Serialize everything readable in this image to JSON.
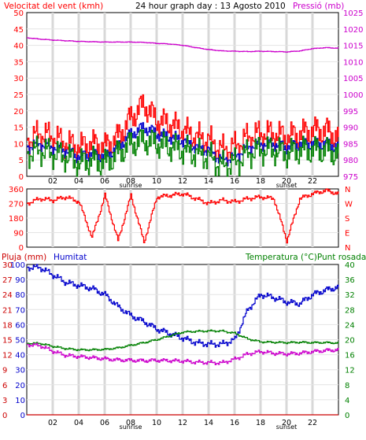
{
  "header": {
    "wind_title": "Velocitat del vent (kmh)",
    "graph_title": "24 hour graph day : 13 Agosto 2010",
    "pressure_title": "Pressió (mb)",
    "rain_title": "Pluja (mm)",
    "humidity_title": "Humitat",
    "temp_title": "Temperatura (°C)Punt rosada"
  },
  "colors": {
    "wind_gust": "#ff0000",
    "wind_avg": "#0000cc",
    "wind_green": "#008000",
    "pressure": "#cc00cc",
    "direction": "#ff0000",
    "humidity": "#0000cc",
    "temperature": "#008000",
    "dewpoint": "#cc00cc",
    "rain": "#cc0000"
  },
  "x_axis": {
    "hour_labels": [
      "02",
      "04",
      "06",
      "08",
      "10",
      "12",
      "14",
      "16",
      "18",
      "20",
      "22"
    ],
    "sunrise_label": "sunrise",
    "sunset_label": "sunset"
  },
  "chart_data": [
    {
      "type": "line",
      "name": "wind_pressure",
      "y_left": {
        "ticks": [
          0,
          5,
          10,
          15,
          20,
          25,
          30,
          35,
          40,
          45,
          50
        ],
        "ylim": [
          0,
          50
        ]
      },
      "y_right": {
        "ticks": [
          975,
          980,
          985,
          990,
          995,
          1000,
          1005,
          1010,
          1015,
          1020,
          1025
        ],
        "ylim": [
          975,
          1025
        ]
      },
      "x": [
        0,
        1,
        2,
        3,
        4,
        5,
        6,
        7,
        8,
        9,
        10,
        11,
        12,
        13,
        14,
        15,
        16,
        17,
        18,
        19,
        20,
        21,
        22,
        23,
        24
      ],
      "series": [
        {
          "key": "gust",
          "values": [
            11,
            13,
            12,
            10,
            9,
            10,
            9,
            12,
            18,
            22,
            17,
            16,
            14,
            12,
            11,
            8,
            9,
            12,
            13,
            13,
            12,
            13,
            14,
            14,
            12
          ],
          "axis": "left"
        },
        {
          "key": "avg",
          "values": [
            9,
            10,
            9,
            8,
            6,
            7,
            6,
            9,
            13,
            15,
            13,
            12,
            11,
            9,
            8,
            5,
            6,
            9,
            10,
            10,
            9,
            10,
            10,
            10,
            9
          ],
          "axis": "left"
        },
        {
          "key": "green",
          "values": [
            7,
            8,
            7,
            6,
            4,
            5,
            4,
            7,
            10,
            11,
            10,
            9,
            8,
            7,
            6,
            3,
            4,
            7,
            8,
            8,
            7,
            8,
            8,
            8,
            7
          ],
          "axis": "left"
        },
        {
          "key": "pressure",
          "values": [
            1017.3,
            1016.9,
            1016.6,
            1016.4,
            1016.2,
            1016.1,
            1016.0,
            1016.0,
            1016.0,
            1015.9,
            1015.6,
            1015.4,
            1015.0,
            1014.3,
            1013.7,
            1013.3,
            1013.2,
            1013.1,
            1013.2,
            1013.1,
            1013.0,
            1013.3,
            1014.0,
            1014.3,
            1014.1
          ],
          "axis": "right"
        }
      ]
    },
    {
      "type": "line",
      "name": "wind_direction",
      "y_left": {
        "ticks": [
          0,
          90,
          180,
          270,
          360
        ],
        "ylim": [
          0,
          360
        ]
      },
      "y_right_labels": [
        "N",
        "W",
        "S",
        "E",
        "N"
      ],
      "x": [
        0,
        1,
        2,
        3,
        4,
        5,
        6,
        7,
        8,
        9,
        10,
        11,
        12,
        13,
        14,
        15,
        16,
        17,
        18,
        19,
        20,
        21,
        22,
        23,
        24
      ],
      "series": [
        {
          "key": "direction",
          "values": [
            270,
            300,
            290,
            310,
            280,
            60,
            320,
            40,
            320,
            30,
            310,
            320,
            330,
            300,
            270,
            290,
            280,
            300,
            310,
            300,
            40,
            300,
            330,
            350,
            330
          ]
        }
      ]
    },
    {
      "type": "line",
      "name": "humidity_temp_rain",
      "y_left_rain": {
        "ticks": [
          0,
          3,
          6,
          9,
          12,
          15,
          18,
          21,
          24,
          27,
          30
        ],
        "ylim": [
          0,
          30
        ]
      },
      "y_left_humidity": {
        "ticks": [
          0,
          10,
          20,
          30,
          40,
          50,
          60,
          70,
          80,
          90,
          100
        ],
        "ylim": [
          0,
          100
        ]
      },
      "y_right_temp": {
        "ticks": [
          0,
          4,
          8,
          12,
          16,
          20,
          24,
          28,
          32,
          36,
          40
        ],
        "ylim": [
          0,
          40
        ]
      },
      "x": [
        0,
        1,
        2,
        3,
        4,
        5,
        6,
        7,
        8,
        9,
        10,
        11,
        12,
        13,
        14,
        15,
        16,
        17,
        18,
        19,
        20,
        21,
        22,
        23,
        24
      ],
      "series": [
        {
          "key": "humidity",
          "values": [
            98,
            98,
            93,
            88,
            86,
            84,
            80,
            72,
            66,
            62,
            57,
            54,
            51,
            48,
            47,
            47,
            50,
            70,
            80,
            78,
            75,
            74,
            80,
            83,
            85
          ],
          "axis": "humidity"
        },
        {
          "key": "temperature",
          "values": [
            19.0,
            19.0,
            18.2,
            17.6,
            17.3,
            17.3,
            17.4,
            17.8,
            18.5,
            19.2,
            20.0,
            21.0,
            22.0,
            22.2,
            22.3,
            22.3,
            21.7,
            20.2,
            19.4,
            19.3,
            19.2,
            19.3,
            19.2,
            19.2,
            19.1
          ],
          "axis": "temp"
        },
        {
          "key": "dewpoint",
          "values": [
            18.7,
            18.4,
            16.9,
            15.8,
            15.5,
            15.2,
            14.9,
            14.6,
            14.5,
            14.4,
            14.5,
            14.4,
            14.3,
            14.0,
            13.9,
            13.8,
            14.8,
            16.2,
            16.8,
            16.4,
            16.2,
            16.4,
            16.8,
            17.1,
            17.3
          ],
          "axis": "temp"
        },
        {
          "key": "rain",
          "values": [
            0,
            0,
            0,
            0,
            0,
            0,
            0,
            0,
            0,
            0,
            0,
            0,
            0,
            0,
            0,
            0,
            0,
            0,
            0,
            0,
            0,
            0,
            0,
            0,
            0
          ],
          "axis": "rain"
        }
      ]
    }
  ]
}
